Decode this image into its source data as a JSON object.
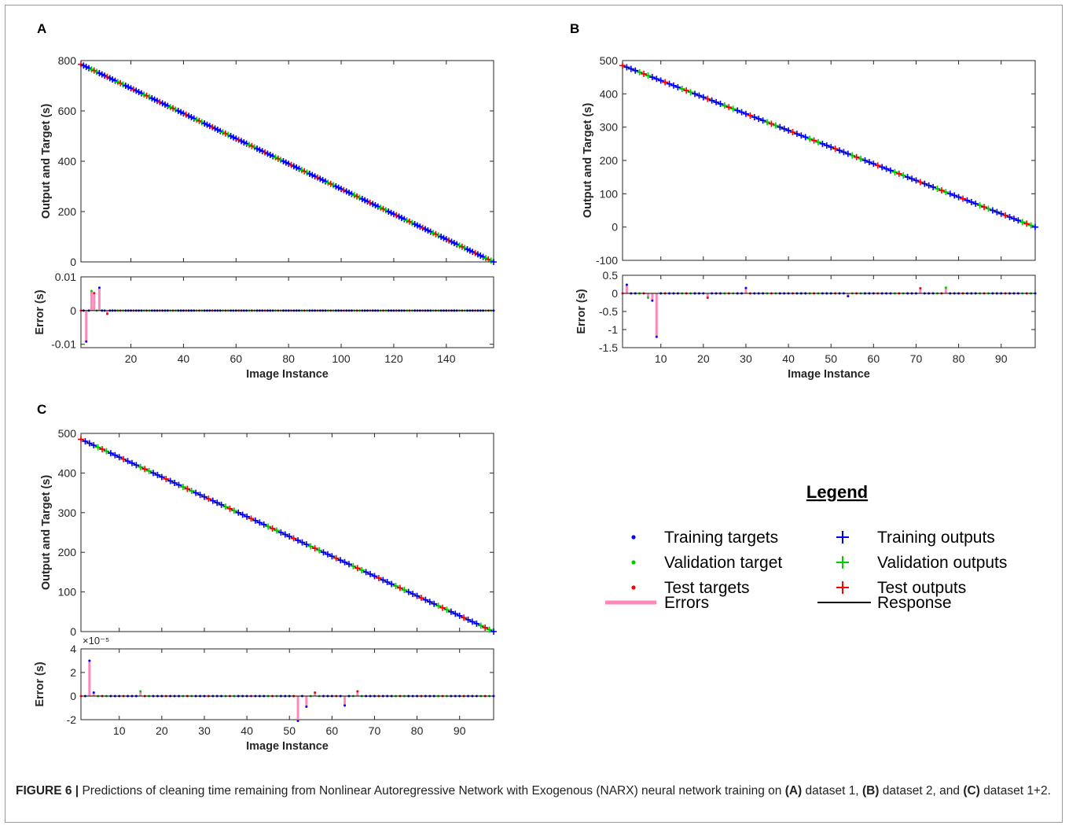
{
  "figure": {
    "caption": {
      "label": "FIGURE 6 |",
      "segments": [
        {
          "text": " Predictions of cleaning time remaining from Nonlinear Autoregressive Network with Exogenous (NARX) neural network training on ",
          "bold": false
        },
        {
          "text": "(A)",
          "bold": true
        },
        {
          "text": " dataset 1, ",
          "bold": false
        },
        {
          "text": "(B)",
          "bold": true
        },
        {
          "text": " dataset 2, and ",
          "bold": false
        },
        {
          "text": "(C)",
          "bold": true
        },
        {
          "text": " dataset 1+2.",
          "bold": false
        }
      ]
    }
  },
  "colors": {
    "training": "#0000ff",
    "validation": "#00cc00",
    "test": "#ff0000",
    "errors": "#ff88bb",
    "response": "#000000"
  },
  "legend": {
    "title": "Legend",
    "items": [
      {
        "label": "Training targets",
        "marker": "dot",
        "color": "training"
      },
      {
        "label": "Training outputs",
        "marker": "plus",
        "color": "training"
      },
      {
        "label": "Validation target",
        "marker": "dot",
        "color": "validation"
      },
      {
        "label": "Validation outputs",
        "marker": "plus",
        "color": "validation"
      },
      {
        "label": "Test targets",
        "marker": "dot",
        "color": "test"
      },
      {
        "label": "Test outputs",
        "marker": "plus",
        "color": "test"
      },
      {
        "label": "Errors",
        "marker": "thick-line",
        "color": "errors"
      },
      {
        "label": "Response",
        "marker": "line",
        "color": "response"
      }
    ]
  },
  "chart_data": [
    {
      "panel": "A",
      "type": "scatter",
      "x_range": [
        1,
        158
      ],
      "response": {
        "ylabel": "Output and Target (s)",
        "ylim": [
          0,
          800
        ],
        "yticks": [
          0,
          200,
          400,
          600,
          800
        ],
        "ytick_labels": [
          "0",
          "200",
          "400",
          "600",
          "800"
        ],
        "start": 785,
        "end": 0
      },
      "error": {
        "ylabel": "Error (s)",
        "xlabel": "Image Instance",
        "ylim": [
          -0.011,
          0.01
        ],
        "yticks": [
          -0.01,
          0,
          0.01
        ],
        "ytick_labels": [
          "-0.01",
          "0",
          "0.01"
        ],
        "exponent_label": "",
        "spikes": [
          {
            "x": 3,
            "y": -0.0092
          },
          {
            "x": 5,
            "y": 0.0058
          },
          {
            "x": 6,
            "y": 0.0052
          },
          {
            "x": 8,
            "y": 0.0068
          },
          {
            "x": 11,
            "y": -0.001
          }
        ]
      },
      "xticks": [
        20,
        40,
        60,
        80,
        100,
        120,
        140
      ],
      "xtick_labels": [
        "20",
        "40",
        "60",
        "80",
        "100",
        "120",
        "140"
      ],
      "point_step": 1
    },
    {
      "panel": "B",
      "type": "scatter",
      "x_range": [
        1,
        98
      ],
      "response": {
        "ylabel": "Output and Target (s)",
        "ylim": [
          -100,
          500
        ],
        "yticks": [
          -100,
          0,
          100,
          200,
          300,
          400,
          500
        ],
        "ytick_labels": [
          "-100",
          "0",
          "100",
          "200",
          "300",
          "400",
          "500"
        ],
        "start": 485,
        "end": 0
      },
      "error": {
        "ylabel": "Error (s)",
        "xlabel": "Image Instance",
        "ylim": [
          -1.5,
          0.5
        ],
        "yticks": [
          -1.5,
          -1,
          -0.5,
          0,
          0.5
        ],
        "ytick_labels": [
          "-1.5",
          "-1",
          "-0.5",
          "0",
          "0.5"
        ],
        "exponent_label": "",
        "spikes": [
          {
            "x": 2,
            "y": 0.24
          },
          {
            "x": 7,
            "y": -0.12
          },
          {
            "x": 8,
            "y": -0.2
          },
          {
            "x": 9,
            "y": -1.2
          },
          {
            "x": 21,
            "y": -0.12
          },
          {
            "x": 30,
            "y": 0.15
          },
          {
            "x": 54,
            "y": -0.08
          },
          {
            "x": 71,
            "y": 0.14
          },
          {
            "x": 77,
            "y": 0.16
          }
        ]
      },
      "xticks": [
        10,
        20,
        30,
        40,
        50,
        60,
        70,
        80,
        90
      ],
      "xtick_labels": [
        "10",
        "20",
        "30",
        "40",
        "50",
        "60",
        "70",
        "80",
        "90"
      ],
      "point_step": 1
    },
    {
      "panel": "C",
      "type": "scatter",
      "x_range": [
        1,
        98
      ],
      "response": {
        "ylabel": "Output and Target (s)",
        "ylim": [
          0,
          500
        ],
        "yticks": [
          0,
          100,
          200,
          300,
          400,
          500
        ],
        "ytick_labels": [
          "0",
          "100",
          "200",
          "300",
          "400",
          "500"
        ],
        "start": 485,
        "end": 0
      },
      "error": {
        "ylabel": "Error (s)",
        "xlabel": "Image Instance",
        "ylim": [
          -2,
          4
        ],
        "yticks": [
          -2,
          0,
          2,
          4
        ],
        "ytick_labels": [
          "-2",
          "0",
          "2",
          "4"
        ],
        "exponent_label": "×10⁻⁵",
        "spikes": [
          {
            "x": 3,
            "y": 3.0
          },
          {
            "x": 4,
            "y": 0.3
          },
          {
            "x": 15,
            "y": 0.4
          },
          {
            "x": 52,
            "y": -2.1
          },
          {
            "x": 54,
            "y": -0.9
          },
          {
            "x": 56,
            "y": 0.3
          },
          {
            "x": 63,
            "y": -0.8
          },
          {
            "x": 66,
            "y": 0.4
          }
        ]
      },
      "xticks": [
        10,
        20,
        30,
        40,
        50,
        60,
        70,
        80,
        90
      ],
      "xtick_labels": [
        "10",
        "20",
        "30",
        "40",
        "50",
        "60",
        "70",
        "80",
        "90"
      ],
      "point_step": 1
    }
  ]
}
